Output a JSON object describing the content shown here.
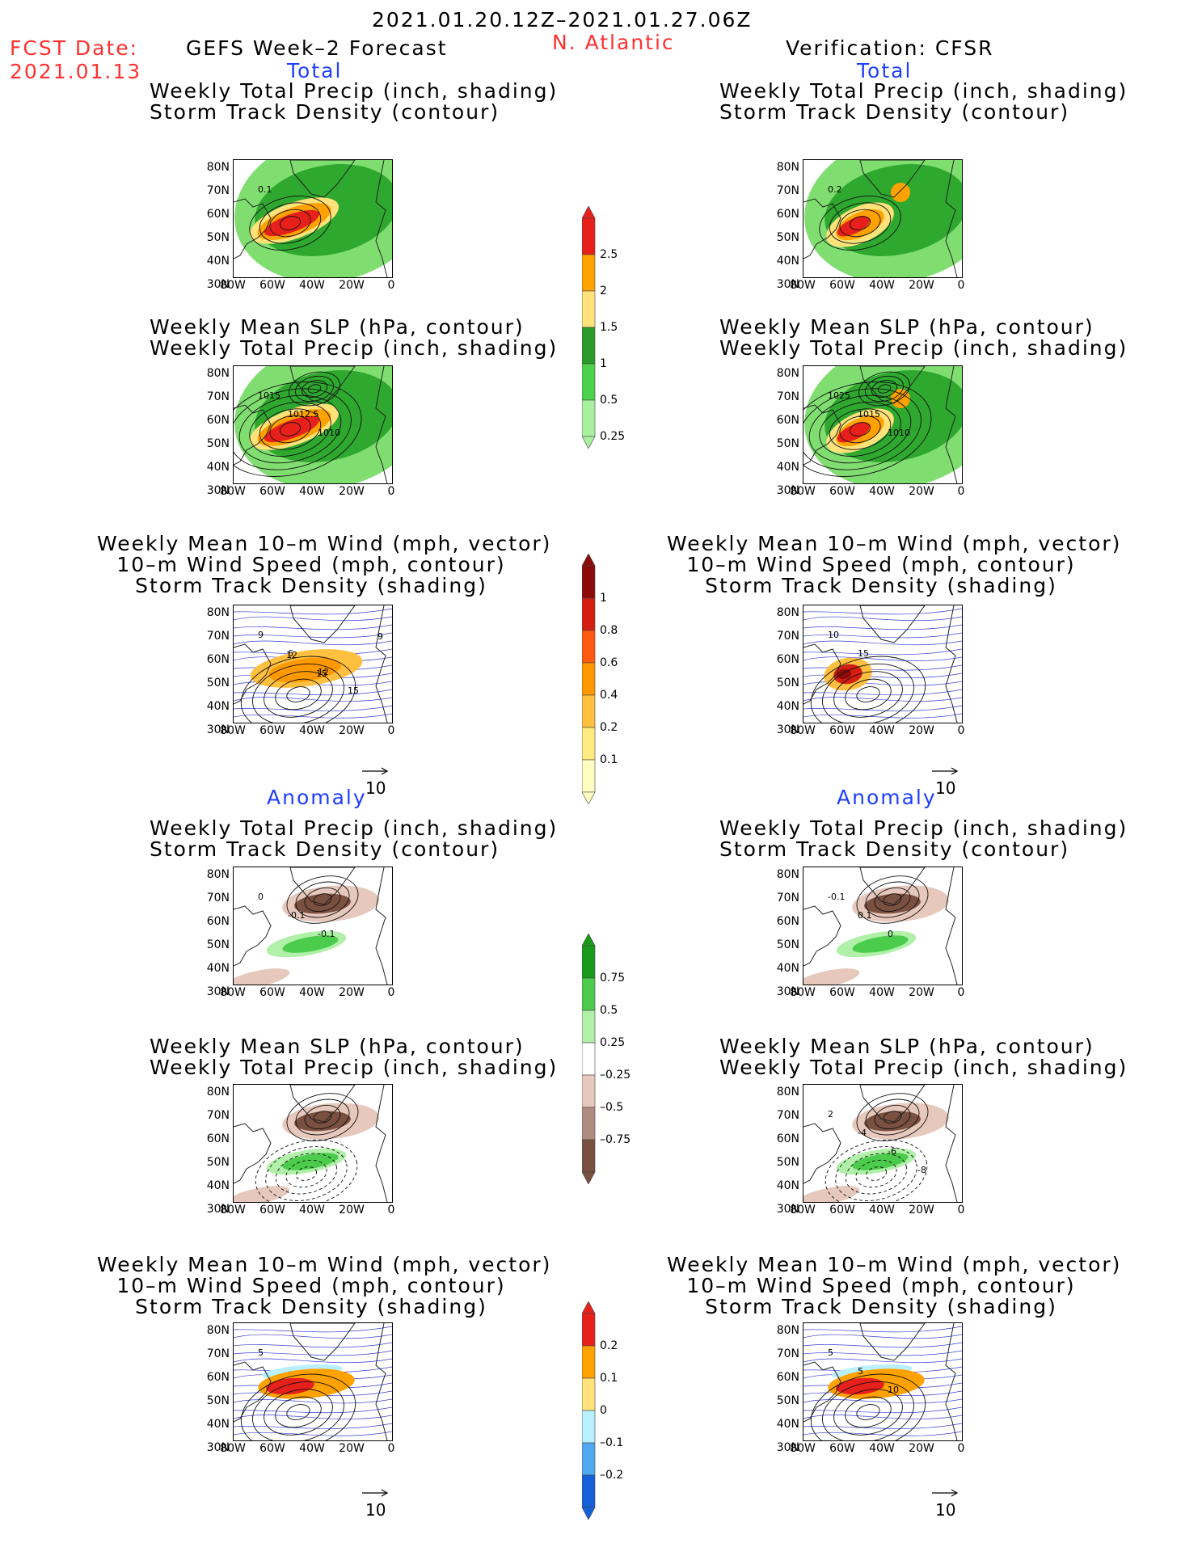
{
  "header": {
    "period": "2021.01.20.12Z–2021.01.27.06Z",
    "fcst_label": "FCST Date:",
    "fcst_date": "2021.01.13",
    "model": "GEFS Week–2 Forecast",
    "region": "N. Atlantic",
    "verification": "Verification: CFSR"
  },
  "sections": {
    "total": "Total",
    "anomaly": "Anomaly"
  },
  "panel_titles": {
    "precip_track": [
      "Weekly Total Precip (inch, shading)",
      "Storm Track Density (contour)"
    ],
    "slp_precip": [
      "Weekly Mean SLP (hPa, contour)",
      "Weekly Total Precip (inch, shading)"
    ],
    "wind_track": [
      "Weekly Mean 10–m Wind (mph, vector)",
      "10–m Wind Speed (mph, contour)",
      "Storm Track Density (shading)"
    ]
  },
  "axes": {
    "lat_ticks": [
      "80N",
      "70N",
      "60N",
      "50N",
      "40N",
      "30N"
    ],
    "lon_ticks": [
      "80W",
      "60W",
      "40W",
      "20W",
      "0"
    ]
  },
  "vector_ref": "10",
  "contour_labels": {
    "fc_total_precip": [
      "0.1"
    ],
    "fc_total_slp": [
      "1015",
      "1012.5",
      "1010"
    ],
    "fc_total_wind": [
      "9",
      "6",
      "12",
      "15",
      "9",
      "12",
      "15"
    ],
    "ob_total_precip": [
      "0.2"
    ],
    "ob_total_slp": [
      "1025",
      "1015",
      "1010"
    ],
    "ob_total_wind": [
      "10",
      "15"
    ],
    "fc_anom_precip": [
      "0",
      "-0.1",
      "-0.1"
    ],
    "ob_anom_precip": [
      "-0.1",
      "0.1",
      "0"
    ],
    "fc_anom_wind": [
      "5"
    ],
    "ob_anom_slp": [
      "2",
      "-4",
      "-6",
      "-8"
    ],
    "ob_anom_wind": [
      "5",
      "5",
      "10"
    ]
  },
  "colorbars": {
    "total_precip": {
      "labels": [
        "2.5",
        "2",
        "1.5",
        "1",
        "0.5",
        "0.25"
      ],
      "colors": [
        "#e8201c",
        "#ffa200",
        "#ffe27a",
        "#2a9a2a",
        "#4cd24c",
        "#a8f0a0"
      ]
    },
    "total_track": {
      "labels": [
        "1",
        "0.8",
        "0.6",
        "0.4",
        "0.2",
        "0.1"
      ],
      "colors": [
        "#8c0a0a",
        "#d41e12",
        "#ff5a10",
        "#ff9900",
        "#ffc040",
        "#ffeb80",
        "#fffcc0"
      ]
    },
    "anom_precip": {
      "labels": [
        "0.75",
        "0.5",
        "0.25",
        "–0.25",
        "–0.5",
        "–0.75"
      ],
      "colors": [
        "#1a9a1a",
        "#4ccc4c",
        "#b0f0a8",
        "#ffffff",
        "#e6c8bc",
        "#b08c80",
        "#7a5040"
      ]
    },
    "anom_track": {
      "labels": [
        "0.2",
        "0.1",
        "0",
        "–0.1",
        "–0.2"
      ],
      "colors": [
        "#e8201c",
        "#ffa200",
        "#ffe27a",
        "#b8f0ff",
        "#4fa8f0",
        "#1560d8"
      ]
    }
  },
  "colors": {
    "red_text": "#ff3030",
    "blue_text": "#1f3fff",
    "precip_green": "#2ea82e",
    "precip_lightgreen": "#80de70",
    "precip_red": "#e8201c",
    "precip_orange": "#ffa200",
    "precip_yellow": "#ffe27a",
    "anom_brown": "#7a5040",
    "anom_tan": "#e6c8bc",
    "wind_blue": "#3b3bd6"
  }
}
